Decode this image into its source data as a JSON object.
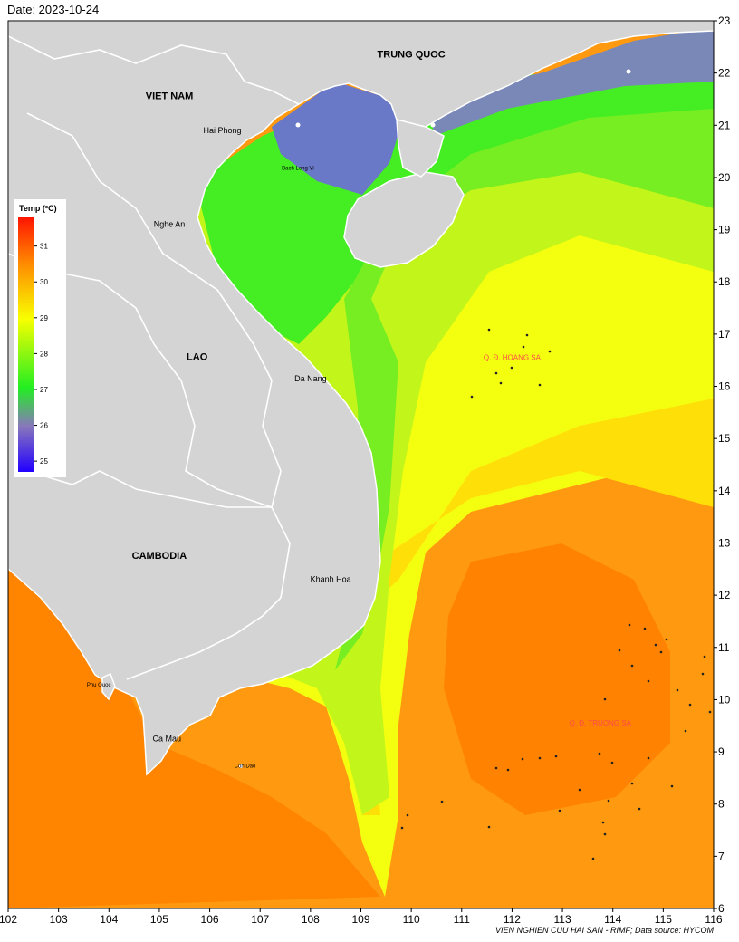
{
  "header": {
    "date": "Date: 2023-10-24"
  },
  "footer": {
    "credit": "VIEN NGHIEN CUU HAI SAN - RIMF; Data source: HYCOM"
  },
  "map": {
    "extent": {
      "lon": [
        102,
        116
      ],
      "lat": [
        6,
        23
      ]
    },
    "lon_ticks": [
      "102",
      "103",
      "104",
      "105",
      "106",
      "107",
      "108",
      "109",
      "110",
      "111",
      "112",
      "113",
      "114",
      "115",
      "116"
    ],
    "lat_ticks": [
      "6",
      "7",
      "8",
      "9",
      "10",
      "11",
      "12",
      "13",
      "14",
      "15",
      "16",
      "17",
      "18",
      "19",
      "20",
      "21",
      "22",
      "23"
    ],
    "countries": [
      {
        "name": "TRUNG QUOC",
        "lon": 110.0,
        "lat": 22.3
      },
      {
        "name": "VIET NAM",
        "lon": 105.2,
        "lat": 21.5
      },
      {
        "name": "LAO",
        "lon": 105.75,
        "lat": 16.5
      },
      {
        "name": "CAMBODIA",
        "lon": 105.0,
        "lat": 12.7
      }
    ],
    "places": [
      {
        "name": "Hai Phong",
        "lon": 106.25,
        "lat": 20.85
      },
      {
        "name": "Bach Long Vi",
        "lon": 107.75,
        "lat": 20.15
      },
      {
        "name": "Nghe An",
        "lon": 105.2,
        "lat": 19.05
      },
      {
        "name": "Da Nang",
        "lon": 108.0,
        "lat": 16.1
      },
      {
        "name": "Khanh Hoa",
        "lon": 108.4,
        "lat": 12.25
      },
      {
        "name": "Phu Quoc",
        "lon": 103.8,
        "lat": 10.25
      },
      {
        "name": "Ca Mau",
        "lon": 105.15,
        "lat": 9.2
      },
      {
        "name": "Con Dao",
        "lon": 106.7,
        "lat": 8.7
      }
    ],
    "archipelagos": [
      {
        "name": "Q. Đ. HOANG SA",
        "lon": 112.0,
        "lat": 16.5
      },
      {
        "name": "Q. Đ. TRUONG SA",
        "lon": 113.75,
        "lat": 9.5
      }
    ]
  },
  "legend": {
    "title": "Temp (ºC)",
    "ticks": [
      "31",
      "30",
      "29",
      "28",
      "27",
      "26",
      "25"
    ],
    "range": [
      24.7,
      31.8
    ],
    "colors": [
      "#2200ff",
      "#7a6ec0",
      "#22ee22",
      "#f8ff00",
      "#ff8a00",
      "#ff1500"
    ]
  }
}
